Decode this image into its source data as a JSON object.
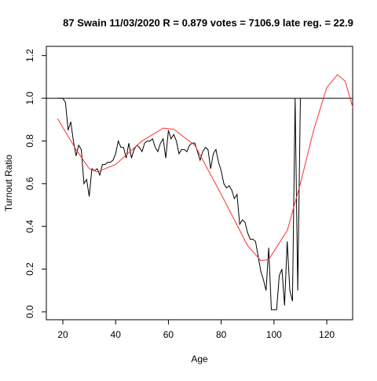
{
  "chart_data": {
    "type": "line",
    "title": "87 Swain 11/03/2020 R = 0.879 votes = 7106.9 late reg. = 22.9",
    "xlabel": "Age",
    "ylabel": "Turnout Ratio",
    "xlim": [
      13.75,
      129.8
    ],
    "ylim": [
      -0.037,
      1.243
    ],
    "xticks": [
      20,
      40,
      60,
      80,
      100,
      120
    ],
    "yticks": [
      {
        "value": 0,
        "label": "0.0"
      },
      {
        "value": 0.2,
        "label": "0.2"
      },
      {
        "value": 0.4,
        "label": "0.4"
      },
      {
        "value": 0.6,
        "label": "0.6"
      },
      {
        "value": 0.8,
        "label": "0.8"
      },
      {
        "value": 1,
        "label": "1.0"
      },
      {
        "value": 1.2,
        "label": "1.2"
      }
    ],
    "hline": 1,
    "series": [
      {
        "color": "#000000",
        "x": [
          18,
          19,
          20,
          21,
          22,
          23,
          24,
          25,
          26,
          27,
          28,
          29,
          30,
          31,
          32,
          33,
          34,
          35,
          36,
          37,
          38,
          39,
          40,
          41,
          42,
          43,
          44,
          45,
          46,
          47,
          48,
          49,
          50,
          51,
          52,
          53,
          54,
          55,
          56,
          57,
          58,
          59,
          60,
          61,
          62,
          63,
          64,
          65,
          66,
          67,
          68,
          69,
          70,
          71,
          72,
          73,
          74,
          75,
          76,
          77,
          78,
          79,
          80,
          81,
          82,
          83,
          84,
          85,
          86,
          87,
          88,
          89,
          90,
          91,
          92,
          93,
          94,
          95,
          96,
          97,
          98,
          99,
          100,
          101,
          102,
          103,
          104,
          105,
          106,
          107,
          108,
          109,
          110
        ],
        "values": [
          1.0,
          1.0,
          1.0,
          0.98,
          0.85,
          0.89,
          0.8,
          0.73,
          0.78,
          0.76,
          0.6,
          0.62,
          0.54,
          0.67,
          0.66,
          0.67,
          0.64,
          0.69,
          0.69,
          0.7,
          0.7,
          0.71,
          0.74,
          0.8,
          0.77,
          0.77,
          0.72,
          0.79,
          0.72,
          0.76,
          0.78,
          0.77,
          0.75,
          0.79,
          0.8,
          0.8,
          0.81,
          0.77,
          0.75,
          0.79,
          0.81,
          0.72,
          0.85,
          0.81,
          0.83,
          0.8,
          0.74,
          0.76,
          0.76,
          0.75,
          0.78,
          0.79,
          0.79,
          0.75,
          0.71,
          0.75,
          0.77,
          0.76,
          0.67,
          0.74,
          0.76,
          0.7,
          0.66,
          0.6,
          0.58,
          0.59,
          0.57,
          0.53,
          0.55,
          0.41,
          0.43,
          0.42,
          0.37,
          0.34,
          0.34,
          0.33,
          0.26,
          0.19,
          0.15,
          0.1,
          0.3,
          0.01,
          0.01,
          0.01,
          0.17,
          0.2,
          0.03,
          0.33,
          0.1,
          0.05,
          1.0,
          0.1,
          1.0
        ]
      },
      {
        "color": "#ff3030",
        "x": [
          18,
          25,
          30,
          33,
          40,
          50,
          58,
          62,
          70,
          80,
          90,
          95,
          98,
          105,
          110,
          115,
          120,
          124,
          127,
          130
        ],
        "values": [
          0.905,
          0.76,
          0.67,
          0.655,
          0.69,
          0.8,
          0.86,
          0.855,
          0.78,
          0.55,
          0.31,
          0.24,
          0.245,
          0.38,
          0.6,
          0.85,
          1.05,
          1.11,
          1.08,
          0.95
        ]
      }
    ]
  }
}
